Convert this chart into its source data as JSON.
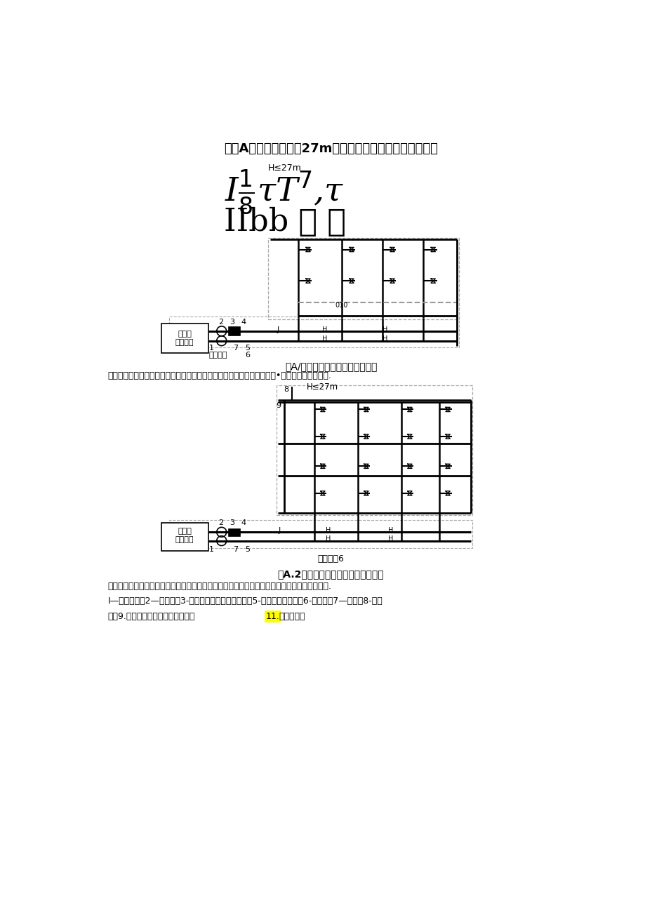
{
  "title": "附录A建筑高度不超过27m的多层建筑管道入户供水系统图",
  "h27m": "H≤27m",
  "diagram1_symbols1": "I¹⁄₈τT⁷ʼτ",
  "diagram1_symbols2": "IIbb ト ト",
  "diagram1_caption": "图A/上供下回式直供水系姚（一）",
  "diagram1_note": "注：本图适用于供［可水横干管有条件布置在底层、地下室或顶层的建筑•如高档的单元式住宅.",
  "zhs_station": "直饮水站",
  "zhs_system": "直饮水\n处理系统",
  "diagram2_h27m_label": "H≤27m",
  "diagram2_caption": "图A.2单循环式管道直饮水系统（一）",
  "diagram2_note": "注：本图适用于供回水横干管可上卜分散布置的建筑，堵加建筑对管道的装饰要求，如学生宿舍.",
  "legend_line1": "I—专用水表：2—净水箱：3-消毒：冬变频调速供水泵：5-循环流量控制阀：6-泄水阀：7—过滤：8-川气",
  "legend_line2": "㎝；9.终端饮水设法（包含饮水器或",
  "legend_highlight": "11.",
  "legend_line2_end": "饮水嘴）。",
  "bg_color": "#ffffff",
  "text_color": "#000000",
  "line_color": "#000000",
  "dash_color": "#999999"
}
